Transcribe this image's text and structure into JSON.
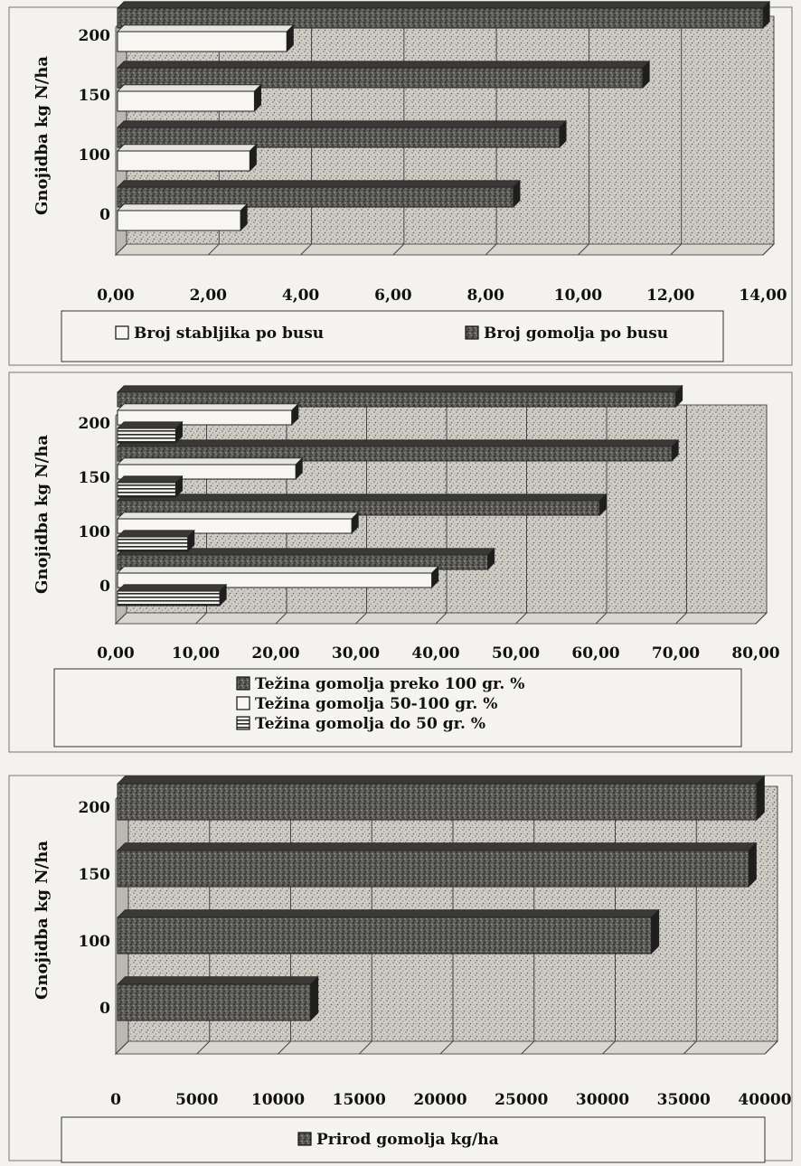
{
  "chart_data": [
    {
      "type": "bar",
      "orientation": "horizontal",
      "ylabel": "Gnojidba kg N/ha",
      "categories": [
        "0",
        "100",
        "150",
        "200"
      ],
      "xlim": [
        0,
        14
      ],
      "x_ticks": [
        "0,00",
        "2,00",
        "4,00",
        "6,00",
        "8,00",
        "10,00",
        "12,00",
        "14,00"
      ],
      "grid": true,
      "legend_position": "bottom",
      "series": [
        {
          "name": "Broj stabljika po busu",
          "pattern": "white",
          "values": [
            2.7,
            2.9,
            3.0,
            3.7
          ]
        },
        {
          "name": "Broj gomolja  po busu",
          "pattern": "dark-stipple",
          "values": [
            8.6,
            9.6,
            11.4,
            14.0
          ]
        }
      ]
    },
    {
      "type": "bar",
      "orientation": "horizontal",
      "ylabel": "Gnojidba  kg N/ha",
      "categories": [
        "0",
        "100",
        "150",
        "200"
      ],
      "xlim": [
        0,
        80
      ],
      "x_ticks": [
        "0,00",
        "10,00",
        "20,00",
        "30,00",
        "40,00",
        "50,00",
        "60,00",
        "70,00",
        "80,00"
      ],
      "grid": true,
      "legend_position": "bottom",
      "series": [
        {
          "name": "Težina  gomolja preko 100 gr. %",
          "pattern": "dark-stipple",
          "values": [
            46.5,
            60.5,
            69.5,
            70.0
          ]
        },
        {
          "name": "Težina  gomolja 50-100 gr. %",
          "pattern": "white",
          "values": [
            39.5,
            29.5,
            22.5,
            22.0
          ]
        },
        {
          "name": "Težina gomolja do 50 gr. %",
          "pattern": "hlines",
          "values": [
            13.0,
            9.0,
            7.5,
            7.5
          ]
        }
      ]
    },
    {
      "type": "bar",
      "orientation": "horizontal",
      "ylabel": "Gnojidba kg N/ha",
      "categories": [
        "0",
        "100",
        "150",
        "200"
      ],
      "xlim": [
        0,
        40000
      ],
      "x_ticks": [
        "0",
        "5000",
        "10000",
        "15000",
        "20000",
        "25000",
        "30000",
        "35000",
        "40000"
      ],
      "grid": true,
      "legend_position": "bottom",
      "series": [
        {
          "name": "Prirod gomolja kg/ha",
          "pattern": "dark-stipple",
          "values": [
            12000,
            33000,
            39000,
            39500
          ]
        }
      ]
    }
  ]
}
